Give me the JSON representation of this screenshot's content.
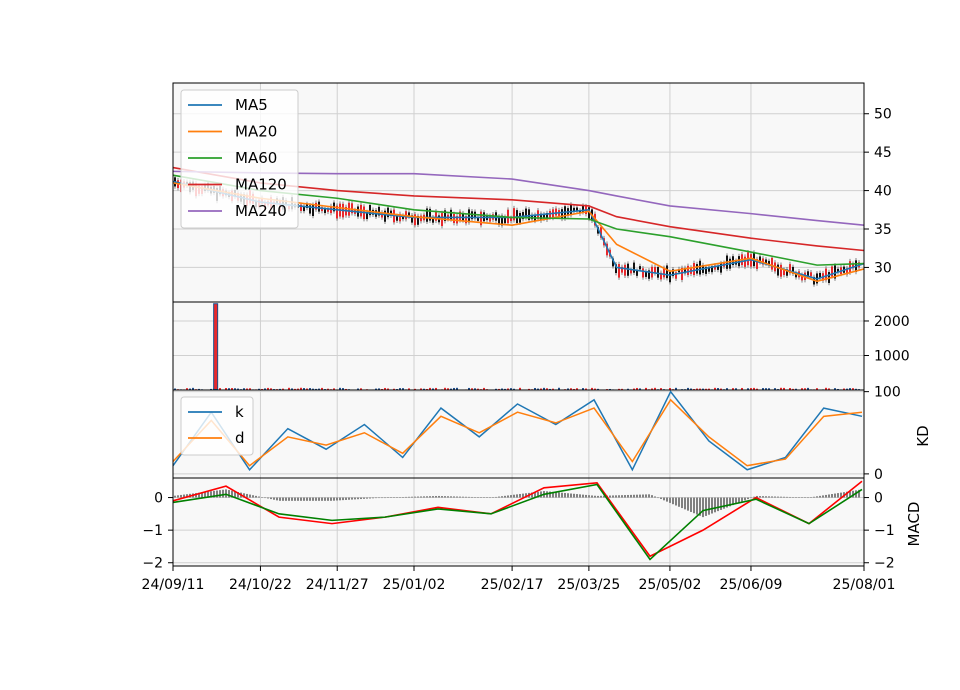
{
  "chart_data": [
    {
      "type": "line",
      "panel": "price",
      "x_ticks": [
        "24/09/11",
        "24/10/22",
        "24/11/27",
        "25/01/02",
        "25/02/17",
        "25/03/25",
        "25/05/02",
        "25/06/09",
        "25/08/01"
      ],
      "x": [
        "24/09/11",
        "24/10/22",
        "24/11/27",
        "25/01/02",
        "25/02/17",
        "25/03/25",
        "25/04/07",
        "25/05/02",
        "25/06/09",
        "25/07/10",
        "25/08/01"
      ],
      "y_ticks": [
        30,
        35,
        40,
        45,
        50
      ],
      "ylim": [
        25.5,
        54
      ],
      "grid": true,
      "legend_position": "top-left",
      "colors": {
        "MA5": "#1f77b4",
        "MA20": "#ff7f0e",
        "MA60": "#2ca02c",
        "MA120": "#d62728",
        "MA240": "#9467bd"
      },
      "series": [
        {
          "name": "MA5",
          "values": [
            41.2,
            38.5,
            37.5,
            36.5,
            36.5,
            37.5,
            30,
            29,
            31,
            28.5,
            30.5
          ]
        },
        {
          "name": "MA20",
          "values": [
            41,
            39,
            37.8,
            36.6,
            35.5,
            37.3,
            33,
            29.5,
            31.2,
            28.2,
            29.8
          ]
        },
        {
          "name": "MA60",
          "values": [
            42,
            40,
            39,
            37.5,
            36.5,
            36.3,
            35,
            34,
            32,
            30.3,
            30.5
          ]
        },
        {
          "name": "MA120",
          "values": [
            43,
            41,
            40,
            39.3,
            38.8,
            38,
            36.6,
            35.3,
            33.8,
            32.8,
            32.2
          ]
        },
        {
          "name": "MA240",
          "values": [
            42.5,
            42.3,
            42.2,
            42.2,
            41.5,
            40,
            39.3,
            38,
            37,
            36.1,
            35.5
          ]
        }
      ]
    },
    {
      "type": "bar",
      "panel": "volume",
      "y_ticks": [
        1000,
        2000
      ],
      "ylim": [
        0,
        2550
      ],
      "x": [
        "24/09/11",
        "24/10/22",
        "24/11/27",
        "25/01/02",
        "25/02/17",
        "25/03/25",
        "25/05/02",
        "25/06/09",
        "25/08/01"
      ],
      "values": [
        60,
        20,
        20,
        20,
        20,
        40,
        50,
        30,
        60
      ],
      "peak": {
        "x": "24/10/01",
        "value": 2500
      }
    },
    {
      "type": "line",
      "panel": "KD",
      "ylabel": "KD",
      "y_ticks": [
        0,
        100
      ],
      "ylim": [
        -5,
        102
      ],
      "legend_position": "top-left",
      "colors": {
        "k": "#1f77b4",
        "d": "#ff7f0e"
      },
      "series": [
        {
          "name": "k",
          "values": [
            10,
            75,
            5,
            55,
            30,
            60,
            20,
            80,
            45,
            85,
            60,
            90,
            5,
            100,
            40,
            5,
            20,
            80,
            70
          ]
        },
        {
          "name": "d",
          "values": [
            15,
            65,
            10,
            45,
            35,
            50,
            25,
            70,
            50,
            75,
            62,
            80,
            15,
            90,
            45,
            10,
            18,
            70,
            75
          ]
        }
      ]
    },
    {
      "type": "line",
      "panel": "MACD",
      "ylabel": "MACD",
      "y_ticks": [
        -2,
        -1,
        0
      ],
      "ylim": [
        -2.1,
        0.6
      ],
      "colors": {
        "macd": "#ff0000",
        "signal": "#008000",
        "histogram": "#808080"
      },
      "series": [
        {
          "name": "macd",
          "values": [
            -0.1,
            0.35,
            -0.6,
            -0.8,
            -0.6,
            -0.3,
            -0.5,
            0.3,
            0.45,
            -1.8,
            -1.0,
            0,
            -0.8,
            0.5
          ]
        },
        {
          "name": "signal",
          "values": [
            -0.15,
            0.1,
            -0.5,
            -0.7,
            -0.6,
            -0.35,
            -0.5,
            0.1,
            0.4,
            -1.9,
            -0.4,
            -0.05,
            -0.8,
            0.25
          ]
        }
      ]
    }
  ]
}
